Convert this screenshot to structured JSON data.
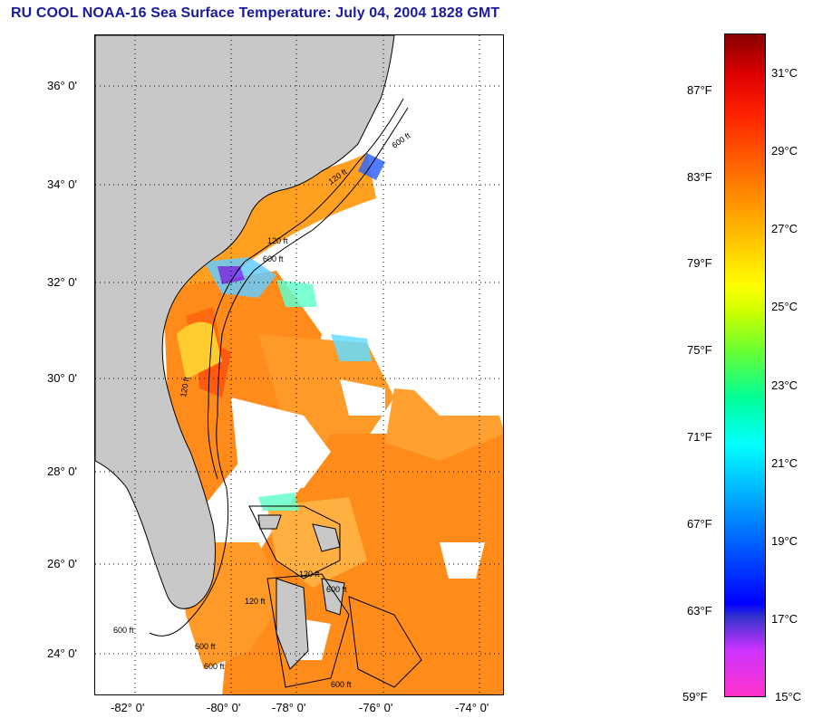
{
  "title": "RU COOL  NOAA-16  Sea Surface Temperature:  July 04, 2004 1828 GMT",
  "latitude_labels": [
    "36° 0'",
    "34° 0'",
    "32° 0'",
    "30° 0'",
    "28° 0'",
    "26° 0'",
    "24° 0'"
  ],
  "longitude_labels": [
    "-82° 0'",
    "-80° 0'",
    "-78° 0'",
    "-76° 0'",
    "-74° 0'"
  ],
  "contour_labels": [
    "120 ft",
    "600 ft",
    "600 ft",
    "120 ft",
    "600 ft",
    "120 ft",
    "600 ft",
    "120 ft",
    "600 ft",
    "120 ft",
    "600 ft",
    "600 ft"
  ],
  "colorbar": {
    "fahrenheit_labels": [
      "87°F",
      "83°F",
      "79°F",
      "75°F",
      "71°F",
      "67°F",
      "63°F",
      "59°F"
    ],
    "celsius_labels": [
      "31°C",
      "29°C",
      "27°C",
      "25°C",
      "23°C",
      "21°C",
      "19°C",
      "17°C",
      "15°C"
    ],
    "min_c": 15,
    "max_c": 32
  },
  "colors": {
    "land": "#c8c8c8",
    "title": "#1a1aa0",
    "warm_sst": "#ff8c1a",
    "cloud": "#ffffff"
  }
}
